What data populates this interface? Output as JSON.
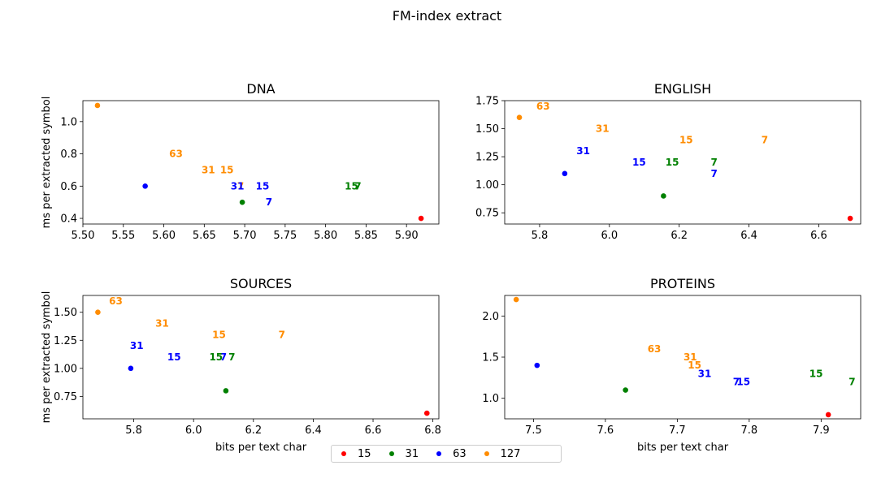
{
  "suptitle": "FM-index extract",
  "legend": {
    "placement": "bottom-center",
    "entries": [
      {
        "label": "15",
        "color": "#ff0000"
      },
      {
        "label": "31",
        "color": "#008000"
      },
      {
        "label": "63",
        "color": "#0000ff"
      },
      {
        "label": "127",
        "color": "#ff8c00"
      }
    ]
  },
  "chart_data": [
    {
      "type": "scatter",
      "title": "DNA",
      "xlabel": "",
      "ylabel": "ms per extracted symbol",
      "xlim": [
        5.5,
        5.94
      ],
      "ylim": [
        0.365,
        1.13
      ],
      "xticks": [
        "5.50",
        "5.55",
        "5.60",
        "5.65",
        "5.70",
        "5.75",
        "5.80",
        "5.85",
        "5.90"
      ],
      "yticks": [
        "0.4",
        "0.6",
        "0.8",
        "1.0"
      ],
      "points": [
        {
          "x": 5.918,
          "y": 0.4,
          "color": "#ff0000"
        },
        {
          "x": 5.697,
          "y": 0.5,
          "color": "#008000"
        },
        {
          "x": 5.577,
          "y": 0.6,
          "color": "#0000ff"
        },
        {
          "x": 5.518,
          "y": 1.1,
          "color": "#ff8c00"
        }
      ],
      "labels": [
        {
          "x": 5.615,
          "y": 0.8,
          "text": "63",
          "color": "#ff8c00"
        },
        {
          "x": 5.655,
          "y": 0.7,
          "text": "31",
          "color": "#ff8c00"
        },
        {
          "x": 5.678,
          "y": 0.7,
          "text": "15",
          "color": "#ff8c00"
        },
        {
          "x": 5.695,
          "y": 0.6,
          "text": "7",
          "color": "#ff8c00"
        },
        {
          "x": 5.691,
          "y": 0.6,
          "text": "31",
          "color": "#0000ff"
        },
        {
          "x": 5.722,
          "y": 0.6,
          "text": "15",
          "color": "#0000ff"
        },
        {
          "x": 5.73,
          "y": 0.5,
          "text": "7",
          "color": "#0000ff"
        },
        {
          "x": 5.832,
          "y": 0.6,
          "text": "15",
          "color": "#008000"
        },
        {
          "x": 5.84,
          "y": 0.6,
          "text": "7",
          "color": "#008000"
        }
      ]
    },
    {
      "type": "scatter",
      "title": "ENGLISH",
      "xlabel": "",
      "ylabel": "",
      "xlim": [
        5.7,
        6.72
      ],
      "ylim": [
        0.65,
        1.75
      ],
      "xticks": [
        "5.8",
        "6.0",
        "6.2",
        "6.4",
        "6.6"
      ],
      "yticks": [
        "0.75",
        "1.00",
        "1.25",
        "1.50",
        "1.75"
      ],
      "points": [
        {
          "x": 6.69,
          "y": 0.7,
          "color": "#ff0000"
        },
        {
          "x": 6.155,
          "y": 0.9,
          "color": "#008000"
        },
        {
          "x": 5.872,
          "y": 1.1,
          "color": "#0000ff"
        },
        {
          "x": 5.742,
          "y": 1.6,
          "color": "#ff8c00"
        }
      ],
      "labels": [
        {
          "x": 5.81,
          "y": 1.7,
          "text": "63",
          "color": "#ff8c00"
        },
        {
          "x": 5.98,
          "y": 1.5,
          "text": "31",
          "color": "#ff8c00"
        },
        {
          "x": 6.22,
          "y": 1.4,
          "text": "15",
          "color": "#ff8c00"
        },
        {
          "x": 6.445,
          "y": 1.4,
          "text": "7",
          "color": "#ff8c00"
        },
        {
          "x": 5.925,
          "y": 1.3,
          "text": "31",
          "color": "#0000ff"
        },
        {
          "x": 6.085,
          "y": 1.2,
          "text": "15",
          "color": "#0000ff"
        },
        {
          "x": 6.3,
          "y": 1.1,
          "text": "7",
          "color": "#0000ff"
        },
        {
          "x": 6.18,
          "y": 1.2,
          "text": "15",
          "color": "#008000"
        },
        {
          "x": 6.3,
          "y": 1.2,
          "text": "7",
          "color": "#008000"
        }
      ]
    },
    {
      "type": "scatter",
      "title": "SOURCES",
      "xlabel": "bits per text char",
      "ylabel": "ms per extracted symbol",
      "xlim": [
        5.63,
        6.82
      ],
      "ylim": [
        0.55,
        1.65
      ],
      "xticks": [
        "5.8",
        "6.0",
        "6.2",
        "6.4",
        "6.6",
        "6.8"
      ],
      "yticks": [
        "0.75",
        "1.00",
        "1.25",
        "1.50"
      ],
      "points": [
        {
          "x": 6.78,
          "y": 0.6,
          "color": "#ff0000"
        },
        {
          "x": 6.108,
          "y": 0.8,
          "color": "#008000"
        },
        {
          "x": 5.79,
          "y": 1.0,
          "color": "#0000ff"
        },
        {
          "x": 5.68,
          "y": 1.5,
          "color": "#ff8c00"
        }
      ],
      "labels": [
        {
          "x": 5.74,
          "y": 1.6,
          "text": "63",
          "color": "#ff8c00"
        },
        {
          "x": 5.895,
          "y": 1.4,
          "text": "31",
          "color": "#ff8c00"
        },
        {
          "x": 6.085,
          "y": 1.3,
          "text": "15",
          "color": "#ff8c00"
        },
        {
          "x": 6.295,
          "y": 1.3,
          "text": "7",
          "color": "#ff8c00"
        },
        {
          "x": 5.81,
          "y": 1.2,
          "text": "31",
          "color": "#0000ff"
        },
        {
          "x": 5.935,
          "y": 1.1,
          "text": "15",
          "color": "#0000ff"
        },
        {
          "x": 6.1,
          "y": 1.1,
          "text": "7",
          "color": "#0000ff"
        },
        {
          "x": 6.075,
          "y": 1.1,
          "text": "15",
          "color": "#008000"
        },
        {
          "x": 6.128,
          "y": 1.1,
          "text": "7",
          "color": "#008000"
        }
      ]
    },
    {
      "type": "scatter",
      "title": "PROTEINS",
      "xlabel": "bits per text char",
      "ylabel": "",
      "xlim": [
        7.46,
        7.955
      ],
      "ylim": [
        0.75,
        2.25
      ],
      "xticks": [
        "7.5",
        "7.6",
        "7.7",
        "7.8",
        "7.9"
      ],
      "yticks": [
        "1.0",
        "1.5",
        "2.0"
      ],
      "points": [
        {
          "x": 7.91,
          "y": 0.8,
          "color": "#ff0000"
        },
        {
          "x": 7.628,
          "y": 1.1,
          "color": "#008000"
        },
        {
          "x": 7.505,
          "y": 1.4,
          "color": "#0000ff"
        },
        {
          "x": 7.476,
          "y": 2.2,
          "color": "#ff8c00"
        }
      ],
      "labels": [
        {
          "x": 7.668,
          "y": 1.6,
          "text": "63",
          "color": "#ff8c00"
        },
        {
          "x": 7.718,
          "y": 1.5,
          "text": "31",
          "color": "#ff8c00"
        },
        {
          "x": 7.724,
          "y": 1.4,
          "text": "15",
          "color": "#ff8c00"
        },
        {
          "x": 7.738,
          "y": 1.3,
          "text": "31",
          "color": "#0000ff"
        },
        {
          "x": 7.782,
          "y": 1.2,
          "text": "7",
          "color": "#0000ff"
        },
        {
          "x": 7.792,
          "y": 1.2,
          "text": "15",
          "color": "#0000ff"
        },
        {
          "x": 7.893,
          "y": 1.3,
          "text": "15",
          "color": "#008000"
        },
        {
          "x": 7.943,
          "y": 1.2,
          "text": "7",
          "color": "#008000"
        }
      ]
    }
  ]
}
